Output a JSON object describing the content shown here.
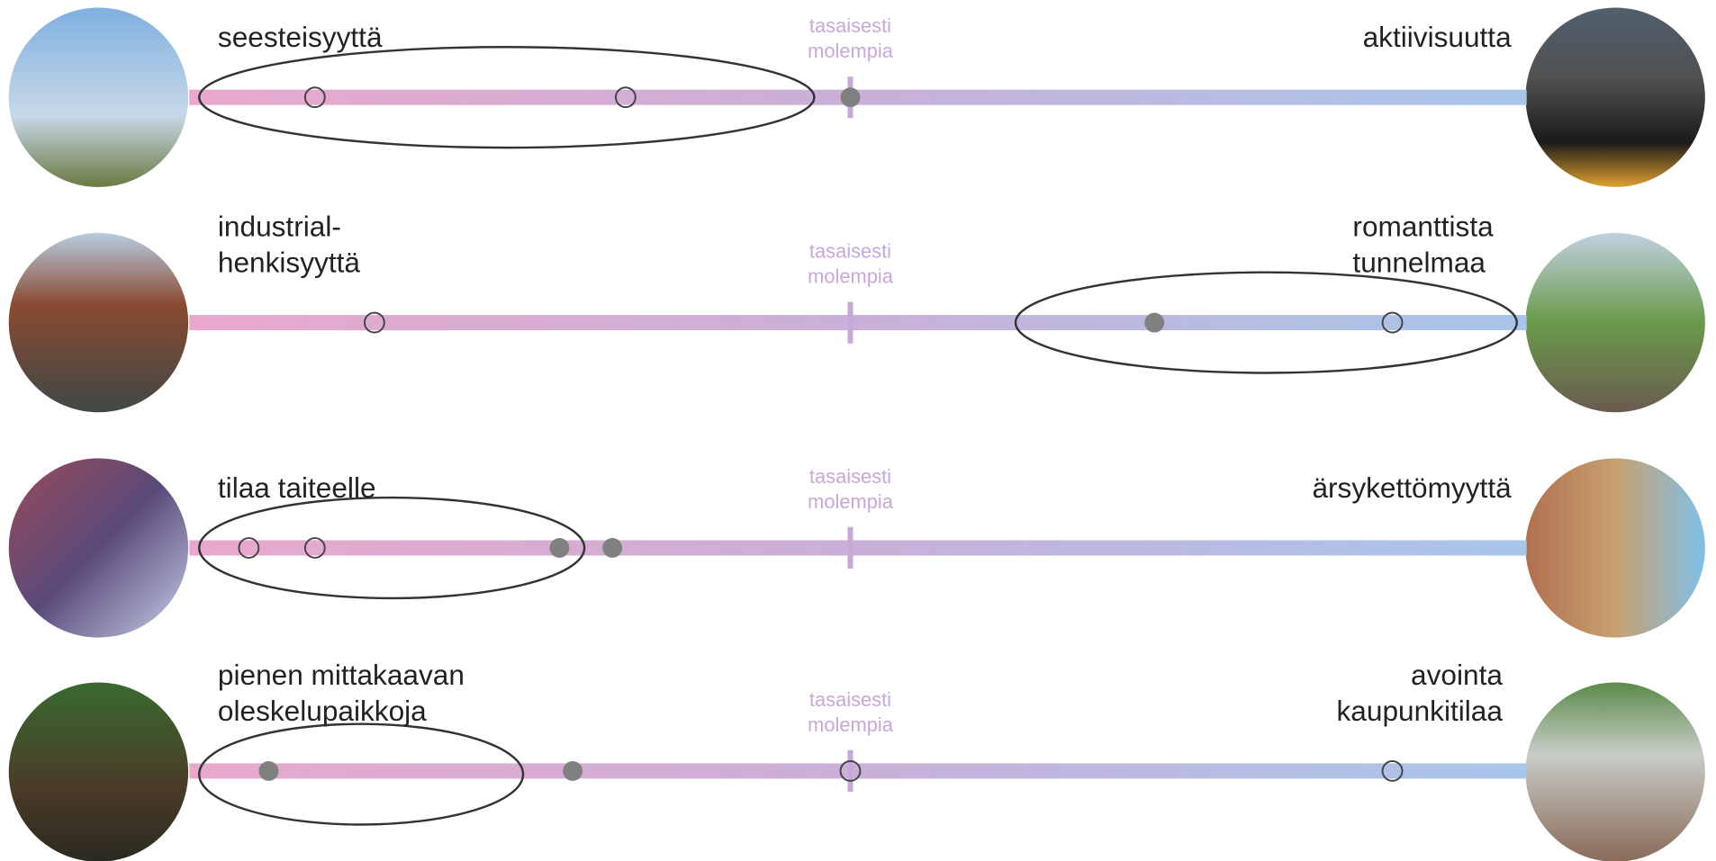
{
  "rows": [
    {
      "left_label": [
        "seesteisyyttä"
      ],
      "right_label": [
        "aktiivisuutta"
      ],
      "center_label": [
        "tasaisesti",
        "molempia"
      ],
      "markers": [
        {
          "position": -0.81,
          "filled": false
        },
        {
          "position": -0.34,
          "filled": false
        },
        {
          "position": 0,
          "filled": true
        }
      ]
    },
    {
      "left_label": [
        "industrial-",
        "henkisyyttä"
      ],
      "right_label": [
        "romanttista",
        "tunnelmaa"
      ],
      "center_label": [
        "tasaisesti",
        "molempia"
      ],
      "markers": [
        {
          "position": -0.72,
          "filled": false
        },
        {
          "position": 0.46,
          "filled": true
        },
        {
          "position": 0.82,
          "filled": false
        }
      ]
    },
    {
      "left_label": [
        "tilaa taiteelle"
      ],
      "right_label": [
        "ärsykettömyyttä"
      ],
      "center_label": [
        "tasaisesti",
        "molempia"
      ],
      "markers": [
        {
          "position": -0.91,
          "filled": false
        },
        {
          "position": -0.81,
          "filled": false
        },
        {
          "position": -0.44,
          "filled": true
        },
        {
          "position": -0.36,
          "filled": true
        }
      ]
    },
    {
      "left_label": [
        "pienen mittakaavan",
        "oleskelupaikkoja"
      ],
      "right_label": [
        "avointa",
        "kaupunkitilaa"
      ],
      "center_label": [
        "tasaisesti",
        "molempia"
      ],
      "markers": [
        {
          "position": -0.88,
          "filled": true
        },
        {
          "position": -0.42,
          "filled": true
        },
        {
          "position": 0,
          "filled": false
        },
        {
          "position": 0.82,
          "filled": false
        }
      ]
    }
  ]
}
